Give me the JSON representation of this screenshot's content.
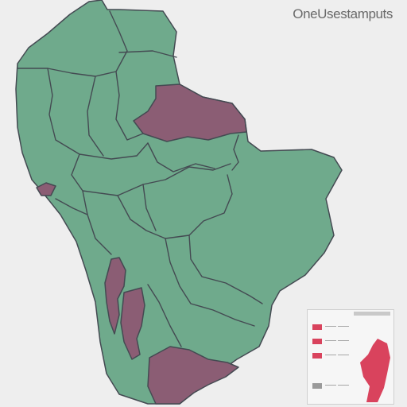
{
  "map": {
    "title": "OneUsestamputs",
    "colors": {
      "land": "#6faa8c",
      "highlight": "#8b5d74",
      "background": "#eeeeee",
      "border": "#444a52",
      "legend_accent": "#d9435d"
    }
  },
  "legend": {
    "items": [
      {
        "label": "—— ——",
        "color": "#d9435d"
      },
      {
        "label": "—— ——",
        "color": "#d9435d"
      },
      {
        "label": "—— ——",
        "color": "#d9435d"
      },
      {
        "label": "—— ——",
        "color": "#9a9a9a"
      }
    ]
  }
}
